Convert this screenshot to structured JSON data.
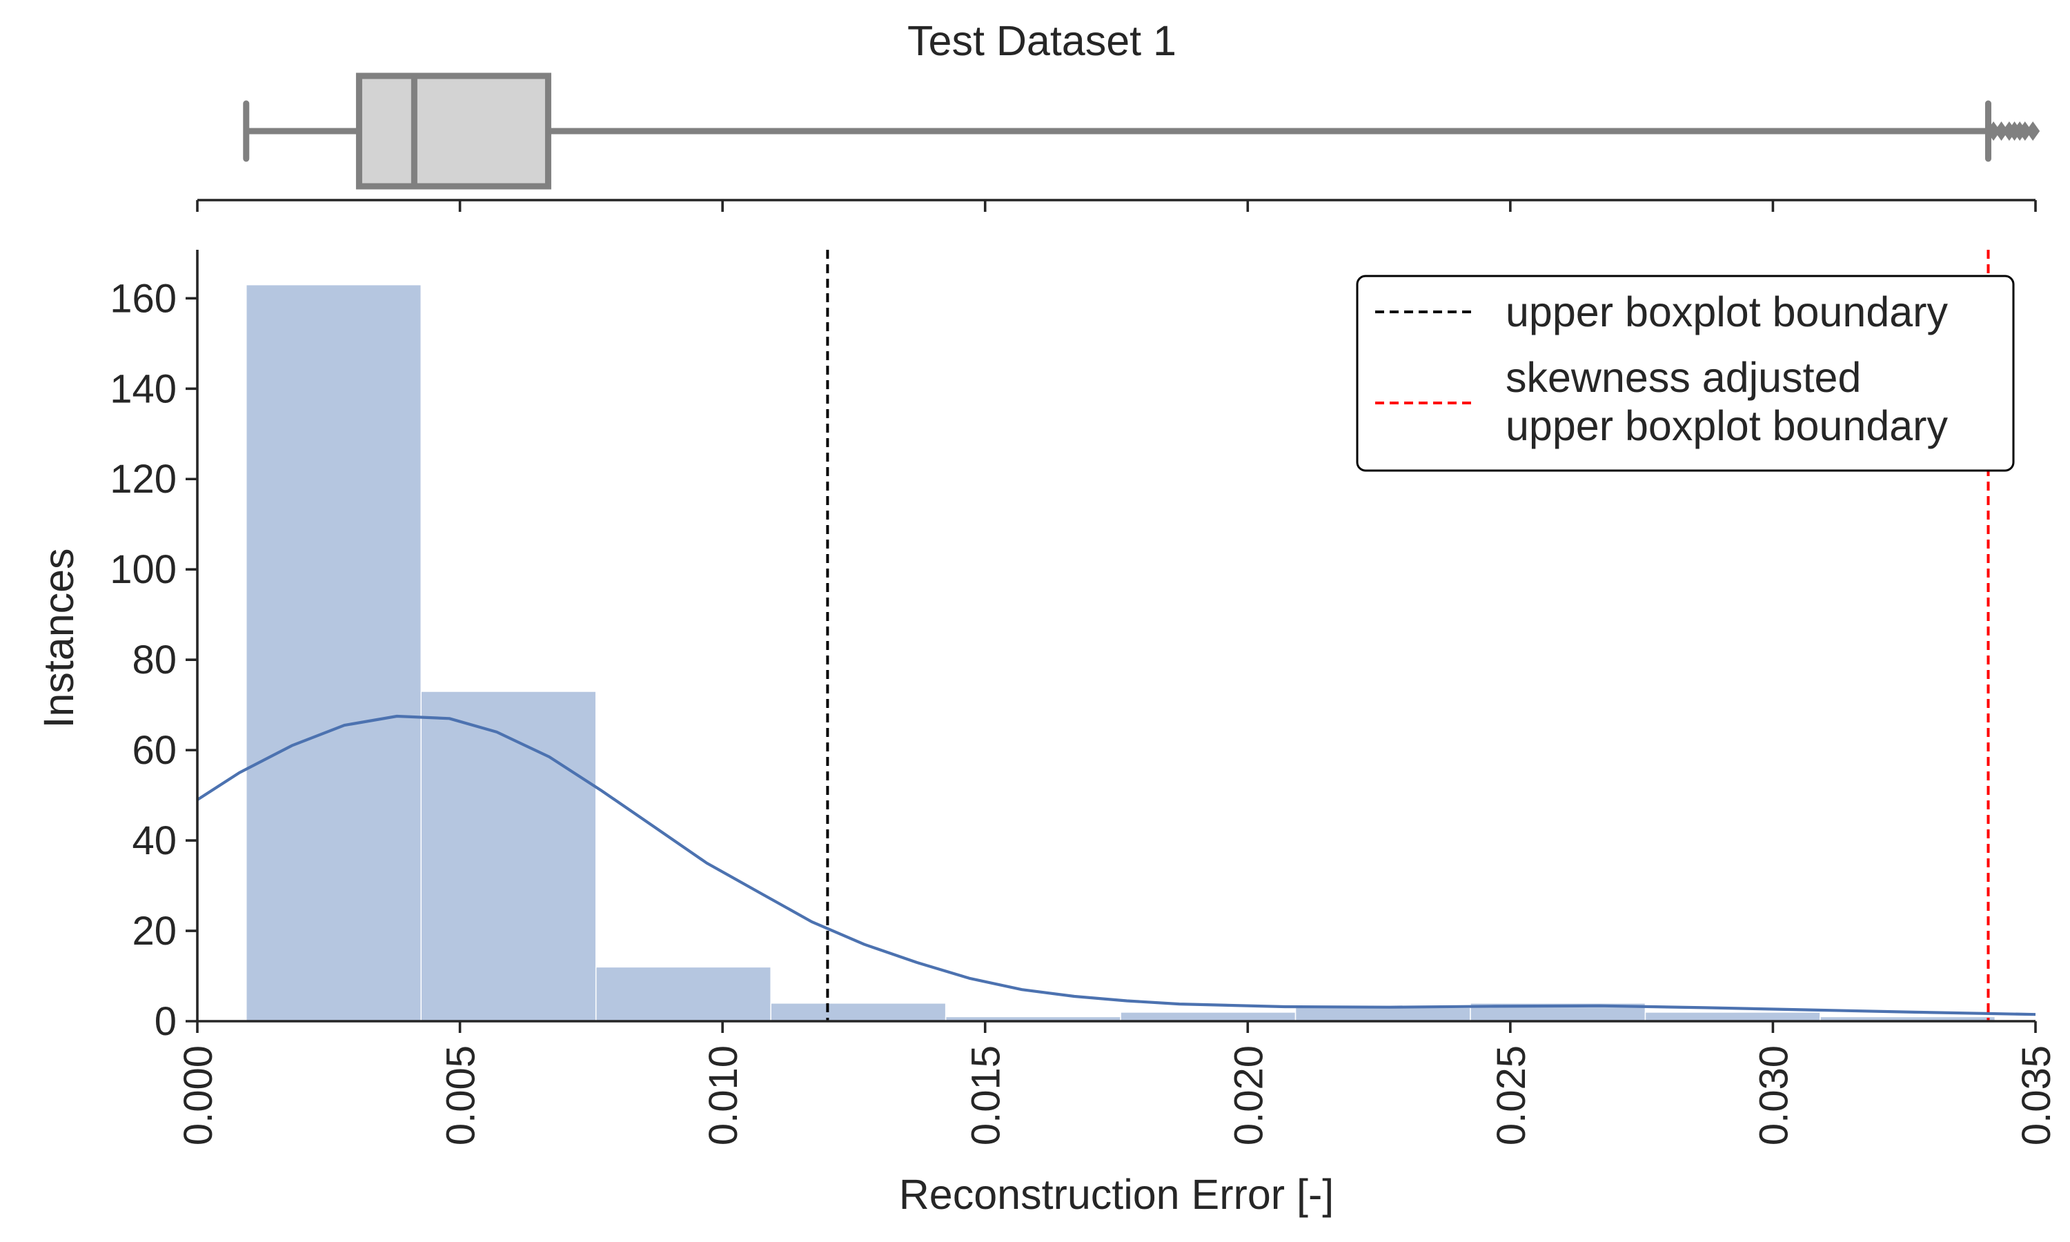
{
  "chart_data": {
    "type": "histogram",
    "title": "Test Dataset 1",
    "xlabel": "Reconstruction Error [-]",
    "ylabel": "Instances",
    "xlim": [
      0.0,
      0.035
    ],
    "ylim": [
      0,
      171
    ],
    "x_ticks": [
      "0.000",
      "0.005",
      "0.010",
      "0.015",
      "0.020",
      "0.025",
      "0.030",
      "0.035"
    ],
    "y_ticks": [
      "0",
      "20",
      "40",
      "60",
      "80",
      "100",
      "120",
      "140",
      "160"
    ],
    "bins": [
      {
        "start": 0.00093,
        "end": 0.00426,
        "count": 163
      },
      {
        "start": 0.00426,
        "end": 0.00759,
        "count": 73
      },
      {
        "start": 0.00759,
        "end": 0.01092,
        "count": 12
      },
      {
        "start": 0.01092,
        "end": 0.01425,
        "count": 4
      },
      {
        "start": 0.01425,
        "end": 0.01758,
        "count": 1
      },
      {
        "start": 0.01758,
        "end": 0.02091,
        "count": 2
      },
      {
        "start": 0.02091,
        "end": 0.02424,
        "count": 3
      },
      {
        "start": 0.02424,
        "end": 0.02757,
        "count": 4
      },
      {
        "start": 0.02757,
        "end": 0.0309,
        "count": 2
      },
      {
        "start": 0.0309,
        "end": 0.03423,
        "count": 1
      }
    ],
    "kde": {
      "x": [
        0.0,
        0.0008,
        0.0018,
        0.0028,
        0.0038,
        0.0048,
        0.0057,
        0.0067,
        0.0077,
        0.0087,
        0.0097,
        0.0107,
        0.0117,
        0.0127,
        0.0137,
        0.0147,
        0.0157,
        0.0167,
        0.0177,
        0.0187,
        0.0207,
        0.0227,
        0.0247,
        0.0267,
        0.0287,
        0.0307,
        0.0327,
        0.035
      ],
      "y": [
        49,
        55,
        61,
        65.5,
        67.5,
        67,
        64,
        58.5,
        51,
        43,
        35,
        28.5,
        22,
        17,
        13,
        9.5,
        7,
        5.5,
        4.5,
        3.8,
        3.2,
        3.1,
        3.3,
        3.4,
        3.0,
        2.5,
        2.0,
        1.5
      ]
    },
    "boxplot": {
      "whisker_low": 0.00093,
      "q1": 0.00308,
      "median": 0.00413,
      "q3": 0.00668,
      "whisker_high": 0.0341,
      "outliers": [
        0.0342,
        0.03435,
        0.0345,
        0.0346,
        0.0347,
        0.0348,
        0.03495
      ]
    },
    "reference_lines": [
      {
        "name": "upper-boxplot-boundary-line",
        "x": 0.012,
        "color": "#000000",
        "label": "upper boxplot boundary"
      },
      {
        "name": "skewness-adjusted-boundary-line",
        "x": 0.0341,
        "color": "#ff0000",
        "label_lines": [
          "skewness adjusted",
          "upper boxplot boundary"
        ]
      }
    ],
    "colors": {
      "hist_fill": "#b5c6e0",
      "kde_line": "#4c72b0",
      "box_fill": "#d3d3d3",
      "box_edge": "#808080",
      "axis": "#262626"
    },
    "legend": {
      "position": "top-right",
      "entries": [
        {
          "lines": [
            "upper boxplot boundary"
          ],
          "color": "#000000"
        },
        {
          "lines": [
            "skewness adjusted",
            "upper boxplot boundary"
          ],
          "color": "#ff0000"
        }
      ]
    }
  }
}
